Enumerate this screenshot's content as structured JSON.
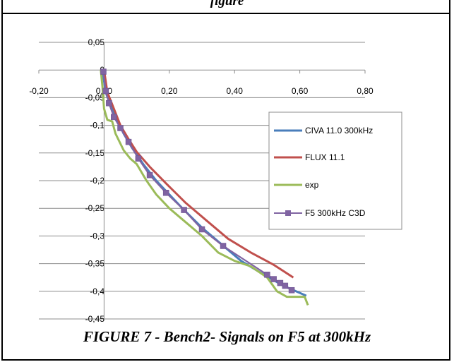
{
  "top_caption": "figure",
  "caption": "FIGURE 7 - Bench2- Signals on F5 at 300kHz",
  "chart_data": {
    "type": "scatter",
    "title": "",
    "xlabel": "",
    "ylabel": "",
    "xlim": [
      -0.2,
      0.8
    ],
    "ylim": [
      -0.45,
      0.05
    ],
    "x_ticks": [
      -0.2,
      0.0,
      0.2,
      0.4,
      0.6,
      0.8
    ],
    "x_tick_labels": [
      "-0,20",
      "0,00",
      "0,20",
      "0,40",
      "0,60",
      "0,80"
    ],
    "y_ticks": [
      0.05,
      0.0,
      -0.05,
      -0.1,
      -0.15,
      -0.2,
      -0.25,
      -0.3,
      -0.35,
      -0.4,
      -0.45
    ],
    "y_tick_labels": [
      "0,05",
      "0",
      "-0,05",
      "-0,1",
      "-0,15",
      "-0,2",
      "-0,25",
      "-0,3",
      "-0,35",
      "-0,4",
      "-0,45"
    ],
    "grid": "horizontal",
    "legend_position": "right",
    "series": [
      {
        "name": "CIVA 11.0 300kHz",
        "color": "#4a7ebb",
        "style": "line",
        "points": [
          [
            -0.005,
            0.0
          ],
          [
            0.005,
            -0.04
          ],
          [
            0.02,
            -0.065
          ],
          [
            0.04,
            -0.09
          ],
          [
            0.06,
            -0.115
          ],
          [
            0.085,
            -0.14
          ],
          [
            0.12,
            -0.17
          ],
          [
            0.16,
            -0.2
          ],
          [
            0.2,
            -0.225
          ],
          [
            0.24,
            -0.25
          ],
          [
            0.3,
            -0.285
          ],
          [
            0.36,
            -0.315
          ],
          [
            0.42,
            -0.345
          ],
          [
            0.49,
            -0.37
          ],
          [
            0.55,
            -0.39
          ],
          [
            0.62,
            -0.408
          ]
        ]
      },
      {
        "name": "FLUX 11.1",
        "color": "#c0504d",
        "style": "line",
        "points": [
          [
            0.0,
            0.0
          ],
          [
            0.01,
            -0.04
          ],
          [
            0.03,
            -0.07
          ],
          [
            0.05,
            -0.1
          ],
          [
            0.075,
            -0.125
          ],
          [
            0.1,
            -0.148
          ],
          [
            0.14,
            -0.175
          ],
          [
            0.19,
            -0.205
          ],
          [
            0.25,
            -0.24
          ],
          [
            0.32,
            -0.275
          ],
          [
            0.38,
            -0.305
          ],
          [
            0.45,
            -0.33
          ],
          [
            0.52,
            -0.352
          ],
          [
            0.58,
            -0.375
          ]
        ]
      },
      {
        "name": "exp",
        "color": "#9bbb59",
        "style": "line",
        "points": [
          [
            -0.01,
            0.0
          ],
          [
            -0.005,
            -0.03
          ],
          [
            0.0,
            -0.07
          ],
          [
            0.01,
            -0.09
          ],
          [
            0.025,
            -0.093
          ],
          [
            0.035,
            -0.115
          ],
          [
            0.06,
            -0.145
          ],
          [
            0.08,
            -0.16
          ],
          [
            0.1,
            -0.17
          ],
          [
            0.13,
            -0.2
          ],
          [
            0.16,
            -0.225
          ],
          [
            0.2,
            -0.25
          ],
          [
            0.25,
            -0.275
          ],
          [
            0.3,
            -0.3
          ],
          [
            0.35,
            -0.33
          ],
          [
            0.4,
            -0.345
          ],
          [
            0.45,
            -0.355
          ],
          [
            0.5,
            -0.375
          ],
          [
            0.53,
            -0.4
          ],
          [
            0.56,
            -0.41
          ],
          [
            0.6,
            -0.41
          ],
          [
            0.615,
            -0.41
          ],
          [
            0.625,
            -0.425
          ]
        ]
      },
      {
        "name": "F5 300kHz C3D",
        "color": "#8064a2",
        "style": "line+markers",
        "points": [
          [
            -0.002,
            -0.003
          ],
          [
            0.005,
            -0.038
          ],
          [
            0.015,
            -0.06
          ],
          [
            0.03,
            -0.085
          ],
          [
            0.05,
            -0.105
          ],
          [
            0.075,
            -0.13
          ],
          [
            0.105,
            -0.16
          ],
          [
            0.14,
            -0.19
          ],
          [
            0.19,
            -0.222
          ],
          [
            0.245,
            -0.253
          ],
          [
            0.3,
            -0.288
          ],
          [
            0.365,
            -0.318
          ],
          [
            0.5,
            -0.37
          ],
          [
            0.52,
            -0.378
          ],
          [
            0.54,
            -0.385
          ],
          [
            0.555,
            -0.39
          ],
          [
            0.575,
            -0.398
          ]
        ]
      }
    ]
  }
}
